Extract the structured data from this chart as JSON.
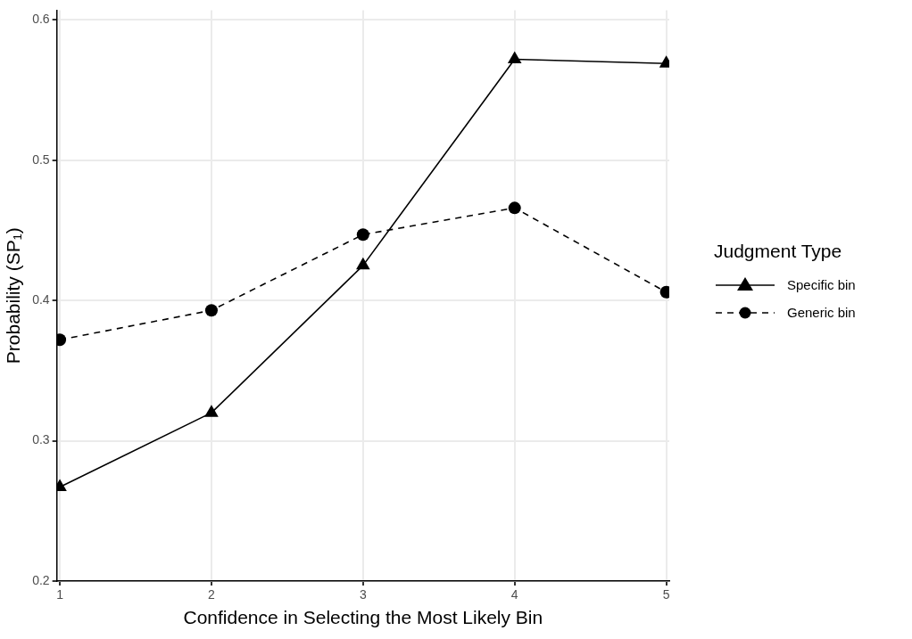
{
  "chart_data": {
    "type": "line",
    "xlabel": "Confidence in Selecting the Most Likely Bin",
    "ylabel": "Probability (SP₁)",
    "legend_title": "Judgment Type",
    "x": [
      1,
      2,
      3,
      4,
      5
    ],
    "xlim": [
      0.98,
      5.02
    ],
    "xticks": [
      1,
      2,
      3,
      4,
      5
    ],
    "ylim": [
      0.2,
      0.607
    ],
    "yticks": [
      0.2,
      0.3,
      0.4,
      0.5,
      0.6
    ],
    "grid": true,
    "legend": "right",
    "series": [
      {
        "name": "Specific bin",
        "color": "#000000",
        "marker": "triangle",
        "line_style": "solid",
        "values": [
          0.267,
          0.32,
          0.425,
          0.572,
          0.569
        ]
      },
      {
        "name": "Generic bin",
        "color": "#000000",
        "marker": "circle",
        "line_style": "dashed",
        "values": [
          0.372,
          0.393,
          0.447,
          0.466,
          0.406
        ]
      }
    ]
  }
}
